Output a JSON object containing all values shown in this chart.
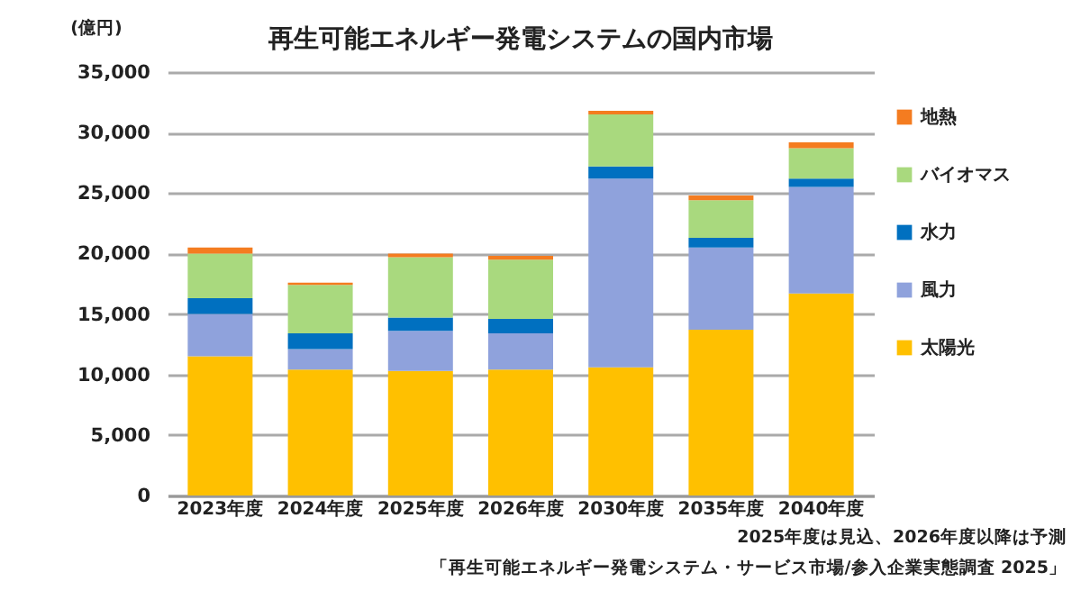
{
  "chart_data": {
    "type": "bar",
    "title": "再生可能エネルギー発電システムの国内市場",
    "ylabel": "(億円)",
    "categories": [
      "2023年度",
      "2024年度",
      "2025年度",
      "2026年度",
      "2030年度",
      "2035年度",
      "2040年度"
    ],
    "stacked": true,
    "series": [
      {
        "name": "太陽光",
        "color": "#ffc000",
        "values": [
          11500,
          10400,
          10300,
          10400,
          10600,
          13700,
          16700
        ]
      },
      {
        "name": "風力",
        "color": "#8fa2dc",
        "values": [
          3500,
          1700,
          3300,
          3000,
          15600,
          6800,
          8800
        ]
      },
      {
        "name": "水力",
        "color": "#0070c0",
        "values": [
          1300,
          1300,
          1100,
          1200,
          1000,
          800,
          700
        ]
      },
      {
        "name": "バイオマス",
        "color": "#a9d97e",
        "values": [
          3700,
          4000,
          5000,
          4900,
          4300,
          3100,
          2500
        ]
      },
      {
        "name": "地熱",
        "color": "#f47c20",
        "values": [
          500,
          200,
          300,
          300,
          300,
          400,
          500
        ]
      }
    ],
    "ylim": [
      0,
      35000
    ],
    "yticks": [
      0,
      {
        "value": 5000,
        "label": "5,000"
      },
      {
        "value": 10000,
        "label": "10,000"
      },
      {
        "value": 15000,
        "label": "15,000"
      },
      {
        "value": 20000,
        "label": "20,000"
      },
      {
        "value": 25000,
        "label": "25,000"
      },
      {
        "value": 30000,
        "label": "30,000"
      },
      {
        "value": 35000,
        "label": "35,000"
      }
    ],
    "grid": "y",
    "legend": "right",
    "annotations": [
      "2025年度は見込、2026年度以降は予測",
      "「再生可能エネルギー発電システム・サービス市場/参入企業実態調査 2025」"
    ]
  }
}
